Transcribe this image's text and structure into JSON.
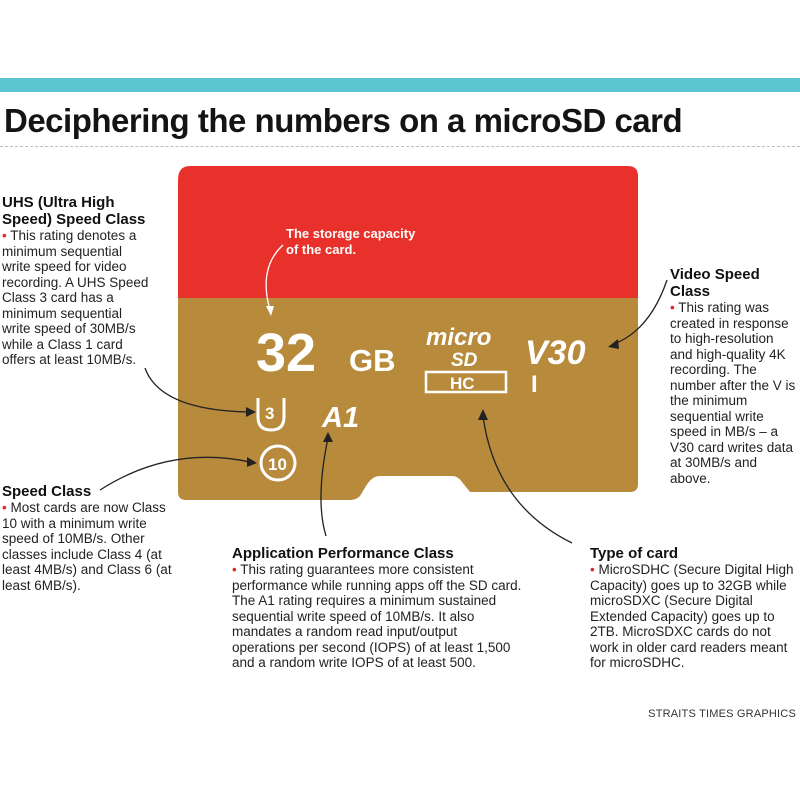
{
  "title": "Deciphering the numbers on a microSD card",
  "card": {
    "capacity": "32",
    "capacity_unit": "GB",
    "logo_micro": "micro",
    "logo_sd": "SD",
    "logo_hc": "HC",
    "video_class": "V30",
    "uhs_bus": "I",
    "uhs_class": "3",
    "app_class": "A1",
    "speed_class": "10",
    "callout": "The storage capacity of the card.",
    "colors": {
      "top": "#e8312b",
      "bottom": "#b88a3c",
      "text": "#ffffff"
    }
  },
  "annotations": {
    "uhs": {
      "head": "UHS (Ultra High Speed) Speed Class",
      "body": "This rating denotes a minimum sequential write speed for video recording. A UHS Speed Class 3 card has a minimum sequential write speed of 30MB/s while a Class 1 card offers at least 10MB/s."
    },
    "speed": {
      "head": "Speed Class",
      "body": "Most cards are now Class 10 with a minimum write speed of 10MB/s. Other classes include Class 4 (at least 4MB/s) and Class 6 (at least 6MB/s)."
    },
    "app": {
      "head": "Application Performance Class",
      "body": "This rating guarantees more consistent performance while running apps off the SD card. The A1 rating requires a minimum sustained sequential write speed of 10MB/s. It also mandates a random read input/output operations per second (IOPS) of at least 1,500 and a random write IOPS of at least 500."
    },
    "video": {
      "head": "Video Speed Class",
      "body": "This rating was created in response to high-resolution and high-quality 4K recording. The number after the V is the minimum sequential write speed in MB/s – a V30 card writes data at 30MB/s and above."
    },
    "type": {
      "head": "Type of card",
      "body": "MicroSDHC (Secure Digital High Capacity) goes up to 32GB while microSDXC (Secure Digital Extended Capacity) goes up to 2TB. MicroSDXC cards do not work in older card readers meant for microSDHC."
    }
  },
  "bullet": "•",
  "credit": "STRAITS TIMES GRAPHICS"
}
